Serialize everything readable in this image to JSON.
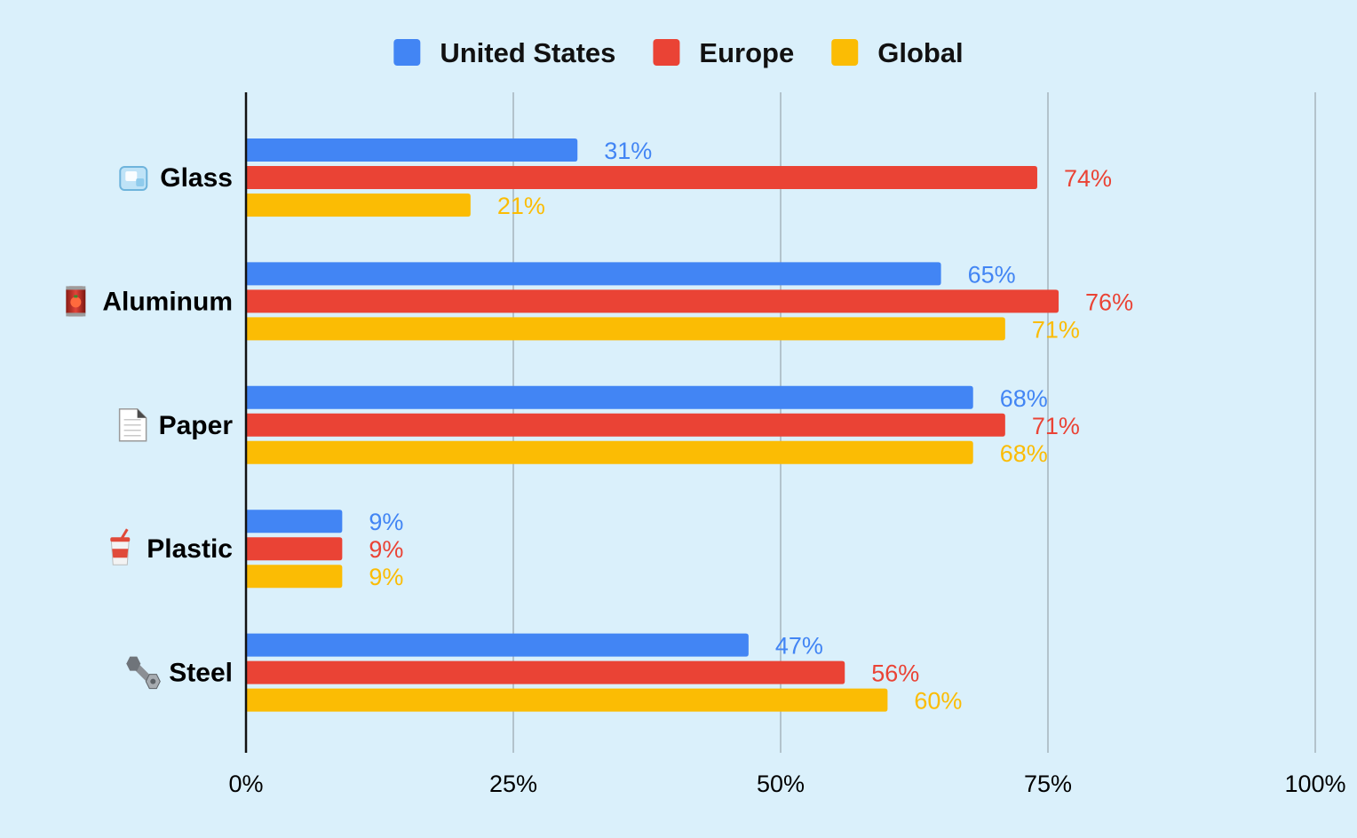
{
  "chart_data": {
    "type": "bar",
    "orientation": "horizontal",
    "title": "",
    "xlabel": "",
    "ylabel": "",
    "categories": [
      "Glass",
      "Aluminum",
      "Paper",
      "Plastic",
      "Steel"
    ],
    "category_icons": [
      "ice-cube-icon",
      "tomato-can-icon",
      "paper-page-icon",
      "cup-with-straw-icon",
      "nut-and-bolt-icon"
    ],
    "series": [
      {
        "name": "United States",
        "color": "#4285f4",
        "values": [
          31,
          65,
          68,
          9,
          47
        ],
        "labels": [
          "31%",
          "65%",
          "68%",
          "9%",
          "47%"
        ]
      },
      {
        "name": "Europe",
        "color": "#ea4335",
        "values": [
          74,
          76,
          71,
          9,
          56
        ],
        "labels": [
          "74%",
          "76%",
          "71%",
          "9%",
          "56%"
        ]
      },
      {
        "name": "Global",
        "color": "#fbbc04",
        "values": [
          21,
          71,
          68,
          9,
          60
        ],
        "labels": [
          "21%",
          "71%",
          "68%",
          "9%",
          "60%"
        ]
      }
    ],
    "xlim": [
      0,
      100
    ],
    "xticks": [
      0,
      25,
      50,
      75,
      100
    ],
    "xtick_labels": [
      "0%",
      "25%",
      "50%",
      "75%",
      "100%"
    ],
    "grid": true,
    "legend_position": "top-center"
  }
}
